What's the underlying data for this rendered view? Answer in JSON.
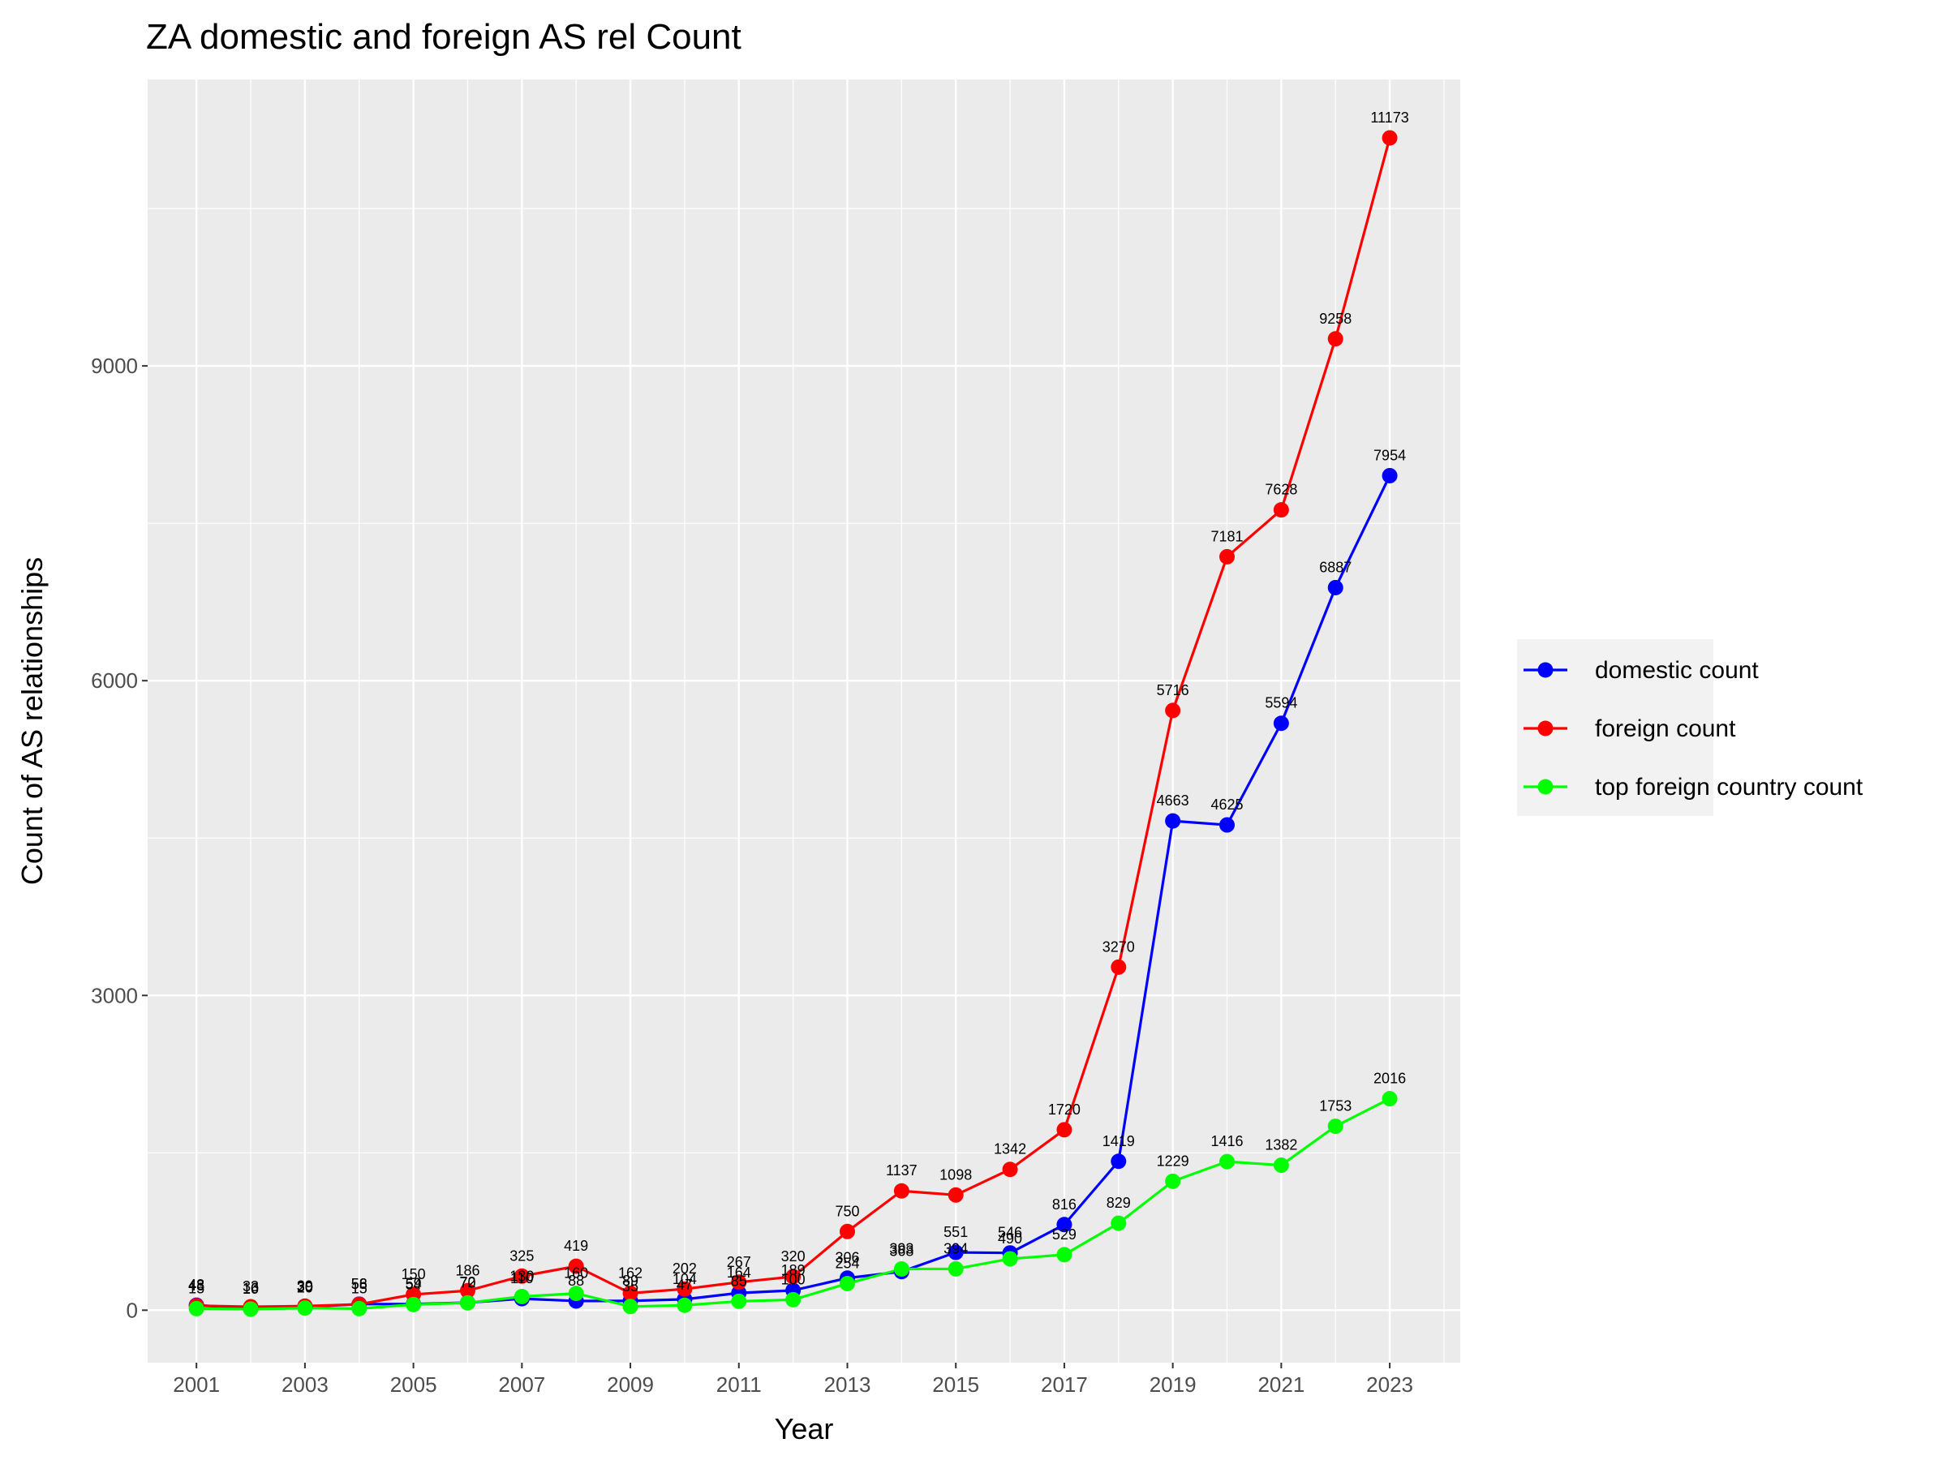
{
  "chart_data": {
    "type": "line",
    "title": "ZA domestic and foreign AS rel Count",
    "xlabel": "Year",
    "ylabel": "Count of AS relationships",
    "x": [
      2001,
      2002,
      2003,
      2004,
      2005,
      2006,
      2007,
      2008,
      2009,
      2010,
      2011,
      2012,
      2013,
      2014,
      2015,
      2016,
      2017,
      2018,
      2019,
      2020,
      2021,
      2022,
      2023
    ],
    "xticks": [
      "2001",
      "2003",
      "2005",
      "2007",
      "2009",
      "2011",
      "2013",
      "2015",
      "2017",
      "2019",
      "2021",
      "2023"
    ],
    "yticks": [
      "0",
      "3000",
      "6000",
      "9000"
    ],
    "xlim": [
      2000.1,
      2024.3
    ],
    "ylim": [
      -500,
      11730
    ],
    "grid": true,
    "legend_position": "right",
    "series": [
      {
        "name": "domestic count",
        "color": "#0000FF",
        "values": [
          48,
          16,
          30,
          58,
          59,
          72,
          110,
          88,
          89,
          104,
          164,
          189,
          306,
          368,
          551,
          546,
          816,
          1419,
          4663,
          4625,
          5594,
          6887,
          7954
        ]
      },
      {
        "name": "foreign count",
        "color": "#FF0000",
        "values": [
          43,
          33,
          39,
          56,
          150,
          186,
          325,
          419,
          162,
          202,
          267,
          320,
          750,
          1137,
          1098,
          1342,
          1720,
          3270,
          5716,
          7181,
          7628,
          9258,
          11173
        ]
      },
      {
        "name": "top foreign country count",
        "color": "#00FF00",
        "values": [
          15,
          10,
          20,
          15,
          54,
          70,
          130,
          160,
          35,
          47,
          85,
          100,
          254,
          393,
          394,
          490,
          529,
          829,
          1229,
          1416,
          1382,
          1753,
          2016
        ]
      }
    ]
  }
}
